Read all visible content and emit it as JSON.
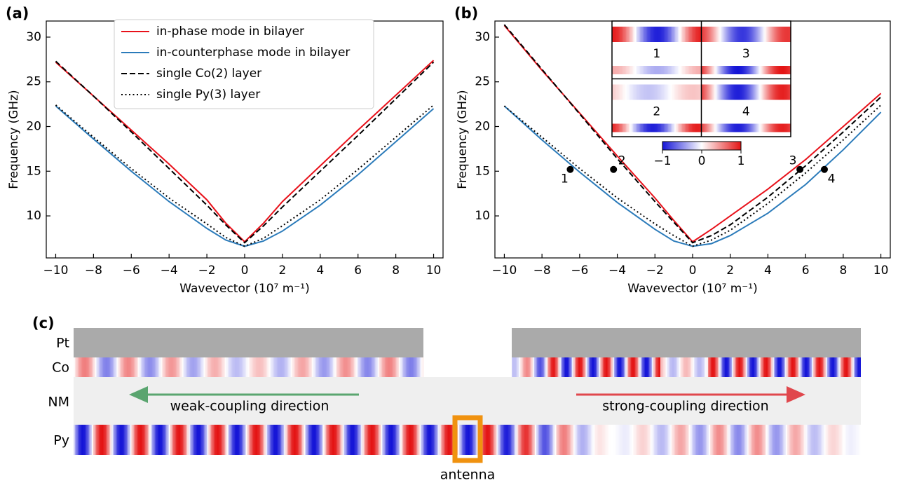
{
  "chart_data": [
    {
      "type": "line",
      "panel_label": "(a)",
      "xlabel": "Wavevector (10⁷ m⁻¹)",
      "ylabel": "Frequency (GHz)",
      "x": [
        -10,
        -8,
        -6,
        -4,
        -2,
        -1,
        0,
        1,
        2,
        4,
        6,
        8,
        10
      ],
      "series": [
        {
          "name": "in-phase mode in bilayer",
          "color": "#e8111a",
          "style": "solid",
          "values": [
            27.2,
            23.4,
            19.6,
            15.8,
            11.8,
            9.2,
            7.1,
            9.2,
            11.6,
            15.6,
            19.6,
            23.5,
            27.4
          ]
        },
        {
          "name": "in-counterphase mode in bilayer",
          "color": "#2b7bba",
          "style": "solid",
          "values": [
            22.3,
            18.6,
            15.0,
            11.6,
            8.6,
            7.3,
            6.6,
            7.2,
            8.3,
            11.2,
            14.6,
            18.3,
            22.0
          ]
        },
        {
          "name": "single Co(2) layer",
          "color": "#000000",
          "style": "dashed",
          "values": [
            27.3,
            23.4,
            19.4,
            15.3,
            11.2,
            9.0,
            7.0,
            8.9,
            11.0,
            15.0,
            19.0,
            23.1,
            27.2
          ]
        },
        {
          "name": "single Py(3) layer",
          "color": "#000000",
          "style": "dotted",
          "values": [
            22.4,
            18.8,
            15.3,
            12.0,
            9.1,
            7.6,
            6.6,
            7.5,
            8.9,
            11.8,
            15.2,
            18.8,
            22.4
          ]
        }
      ],
      "xlim": [
        -10.5,
        10.5
      ],
      "ylim": [
        5.3,
        31.8
      ],
      "xticks": [
        {
          "value": -10,
          "label": "−10"
        },
        {
          "value": -8,
          "label": "−8"
        },
        {
          "value": -6,
          "label": "−6"
        },
        {
          "value": -4,
          "label": "−4"
        },
        {
          "value": -2,
          "label": "−2"
        },
        0,
        2,
        4,
        6,
        8,
        10
      ],
      "yticks": [
        10,
        15,
        20,
        25,
        30
      ],
      "legend": "upper center"
    },
    {
      "type": "line",
      "panel_label": "(b)",
      "xlabel": "Wavevector (10⁷ m⁻¹)",
      "ylabel": "Frequency (GHz)",
      "x": [
        -10,
        -8,
        -6,
        -4,
        -2,
        -1,
        0,
        1,
        2,
        4,
        6,
        8,
        10
      ],
      "series": [
        {
          "color": "#e8111a",
          "style": "solid",
          "values": [
            31.3,
            26.3,
            21.5,
            16.7,
            12.0,
            9.5,
            7.1,
            8.5,
            10.0,
            13.0,
            16.3,
            20.0,
            23.7
          ]
        },
        {
          "color": "#2b7bba",
          "style": "solid",
          "values": [
            22.3,
            18.5,
            14.9,
            11.5,
            8.5,
            7.2,
            6.6,
            6.9,
            7.8,
            10.3,
            13.5,
            17.4,
            21.6
          ]
        },
        {
          "color": "#000000",
          "style": "dashed",
          "values": [
            31.4,
            26.4,
            21.4,
            16.4,
            11.6,
            9.3,
            7.0,
            7.8,
            9.0,
            12.1,
            15.6,
            19.4,
            23.3
          ]
        },
        {
          "color": "#000000",
          "style": "dotted",
          "values": [
            22.3,
            18.8,
            15.3,
            12.0,
            9.1,
            7.8,
            6.6,
            7.3,
            8.4,
            11.4,
            14.8,
            18.5,
            22.4
          ]
        }
      ],
      "points": {
        "x": [
          -6.5,
          -4.2,
          5.7,
          7.0
        ],
        "y": [
          15.2,
          15.2,
          15.2,
          15.2
        ],
        "labels": [
          "1",
          "2",
          "3",
          "4"
        ]
      },
      "inset": {
        "labels": [
          "1",
          "3",
          "2",
          "4"
        ],
        "colorbar": {
          "lim": [
            -1,
            1
          ],
          "ticks": [
            {
              "value": -1,
              "label": "−1"
            },
            0,
            1
          ]
        }
      },
      "xlim": [
        -10.5,
        10.5
      ],
      "ylim": [
        5.3,
        31.8
      ],
      "xticks": [
        {
          "value": -10,
          "label": "−10"
        },
        {
          "value": -8,
          "label": "−8"
        },
        {
          "value": -6,
          "label": "−6"
        },
        {
          "value": -4,
          "label": "−4"
        },
        {
          "value": -2,
          "label": "−2"
        },
        0,
        2,
        4,
        6,
        8,
        10
      ],
      "yticks": [
        10,
        15,
        20,
        25,
        30
      ]
    }
  ],
  "diagram": {
    "panel_label": "(c)",
    "layers": [
      "Pt",
      "Co",
      "NM",
      "Py"
    ],
    "arrows": [
      "weak-coupling direction",
      "strong-coupling direction"
    ],
    "antenna": "antenna"
  }
}
